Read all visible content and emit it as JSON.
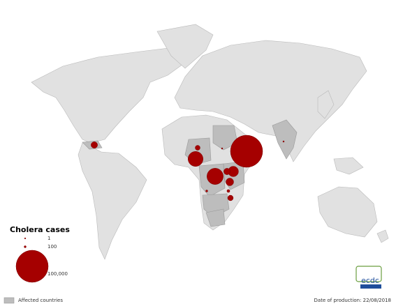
{
  "legend": {
    "title": "Cholera cases",
    "sizes": [
      1,
      100,
      {
        "value": 100000,
        "label": "100,000"
      }
    ],
    "affected": "Affected countries"
  },
  "bubbles": [
    100000,
    20000,
    24000,
    9000,
    3000,
    4500,
    3000,
    1500,
    100,
    300,
    2000,
    10,
    10
  ],
  "bubble_color": "#a50000",
  "footer": {
    "date": "Date of production: 22/08/2018",
    "logo": "ecdc"
  }
}
